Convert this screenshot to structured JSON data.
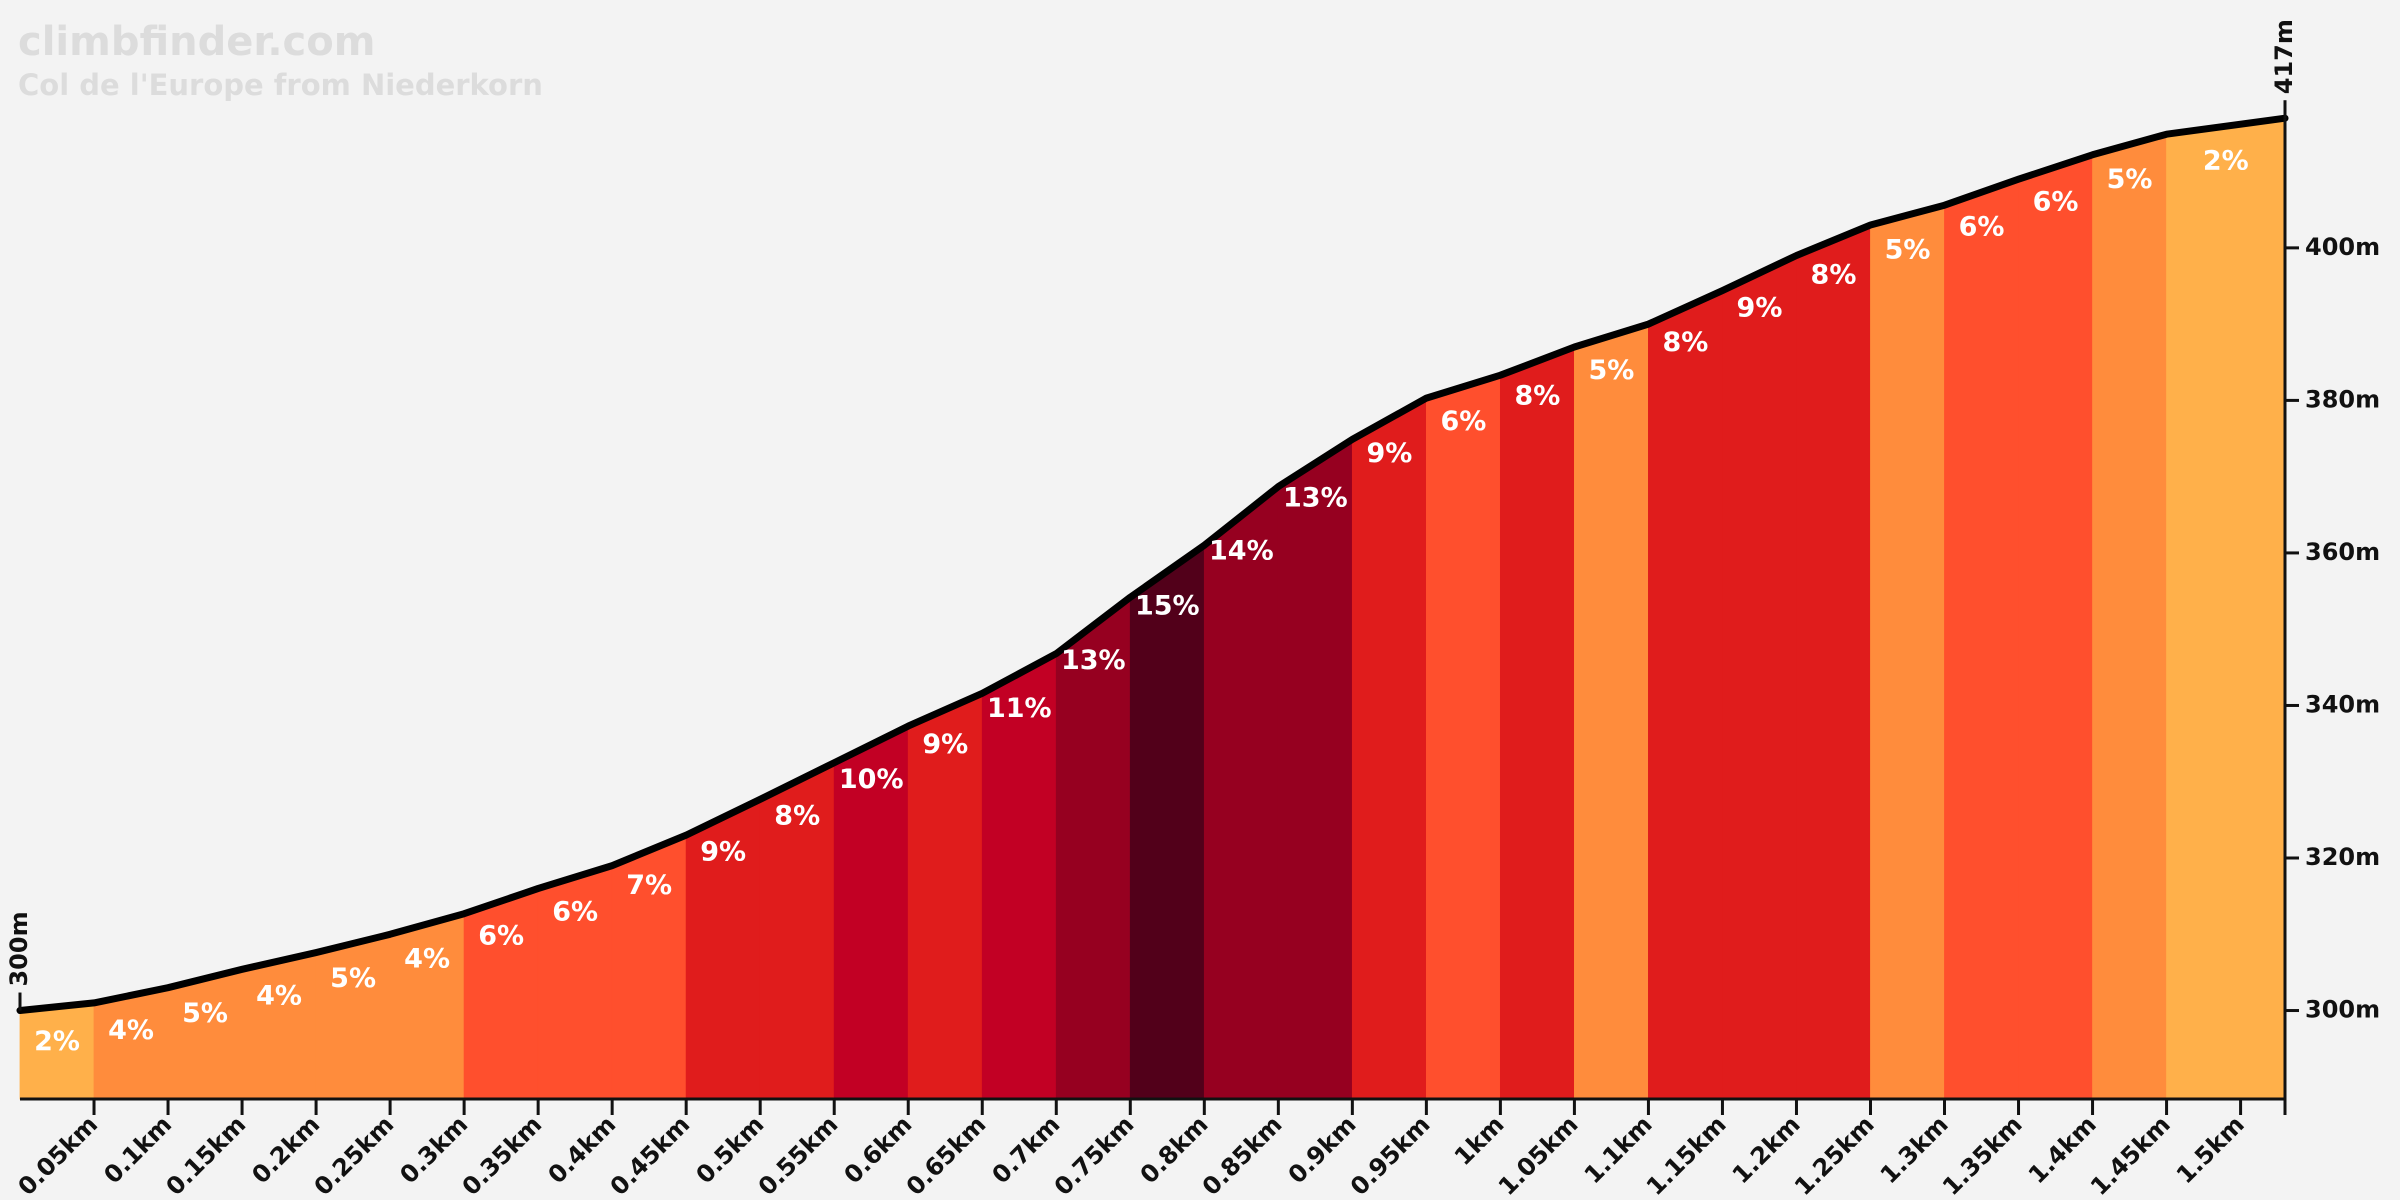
{
  "chart_data": {
    "type": "area",
    "title": "climbfinder.com",
    "subtitle": "Col de l'Europe from Niederkorn",
    "x": [
      0,
      0.05,
      0.1,
      0.15,
      0.2,
      0.25,
      0.3,
      0.35,
      0.4,
      0.45,
      0.5,
      0.55,
      0.6,
      0.65,
      0.7,
      0.75,
      0.8,
      0.85,
      0.9,
      0.95,
      1.0,
      1.05,
      1.1,
      1.15,
      1.2,
      1.25,
      1.3,
      1.35,
      1.4,
      1.45,
      1.53
    ],
    "values": [
      300,
      301,
      303,
      305.4,
      307.6,
      310,
      312.7,
      316,
      319,
      323,
      327.7,
      332.5,
      337.3,
      341.6,
      346.8,
      354.2,
      361,
      368.7,
      374.9,
      380.3,
      383.3,
      387,
      390,
      394.4,
      399,
      403,
      405.6,
      409,
      412.2,
      414.9,
      417
    ],
    "color": "#000000",
    "segments": {
      "gradients": [
        2,
        4,
        5,
        4,
        5,
        4,
        6,
        6,
        7,
        9,
        8,
        10,
        9,
        11,
        13,
        15,
        14,
        13,
        9,
        6,
        8,
        5,
        8,
        9,
        8,
        5,
        6,
        6,
        5,
        2
      ],
      "gradient_labels": [
        "2%",
        "4%",
        "5%",
        "4%",
        "5%",
        "4%",
        "6%",
        "6%",
        "7%",
        "9%",
        "8%",
        "10%",
        "9%",
        "11%",
        "13%",
        "15%",
        "14%",
        "13%",
        "9%",
        "6%",
        "8%",
        "5%",
        "8%",
        "9%",
        "8%",
        "5%",
        "6%",
        "6%",
        "5%",
        "2%"
      ],
      "colors": [
        "#ffb04a",
        "#ff8c3c",
        "#ff8c3c",
        "#ff8c3c",
        "#ff8c3c",
        "#ff8c3c",
        "#ff4f2d",
        "#ff4f2d",
        "#ff4f2d",
        "#e01c1c",
        "#e01c1c",
        "#c20024",
        "#e01c1c",
        "#c20024",
        "#960020",
        "#52001a",
        "#960020",
        "#960020",
        "#e01c1c",
        "#ff4f2d",
        "#e01c1c",
        "#ff8c3c",
        "#e01c1c",
        "#e01c1c",
        "#e01c1c",
        "#ff8c3c",
        "#ff4f2d",
        "#ff4f2d",
        "#ff8c3c",
        "#ffb04a"
      ]
    },
    "annotations": [
      {
        "value": 300,
        "label": "300m"
      },
      {
        "value": 417,
        "label": "417m"
      }
    ],
    "xlim": [
      0,
      1.53
    ],
    "ylim": [
      288.4,
      432.5
    ],
    "xticks": [
      {
        "value": 0.05,
        "label": "0.05km"
      },
      {
        "value": 0.1,
        "label": "0.1km"
      },
      {
        "value": 0.15,
        "label": "0.15km"
      },
      {
        "value": 0.2,
        "label": "0.2km"
      },
      {
        "value": 0.25,
        "label": "0.25km"
      },
      {
        "value": 0.3,
        "label": "0.3km"
      },
      {
        "value": 0.35,
        "label": "0.35km"
      },
      {
        "value": 0.4,
        "label": "0.4km"
      },
      {
        "value": 0.45,
        "label": "0.45km"
      },
      {
        "value": 0.5,
        "label": "0.5km"
      },
      {
        "value": 0.55,
        "label": "0.55km"
      },
      {
        "value": 0.6,
        "label": "0.6km"
      },
      {
        "value": 0.65,
        "label": "0.65km"
      },
      {
        "value": 0.7,
        "label": "0.7km"
      },
      {
        "value": 0.75,
        "label": "0.75km"
      },
      {
        "value": 0.8,
        "label": "0.8km"
      },
      {
        "value": 0.85,
        "label": "0.85km"
      },
      {
        "value": 0.9,
        "label": "0.9km"
      },
      {
        "value": 0.95,
        "label": "0.95km"
      },
      {
        "value": 1,
        "label": "1km"
      },
      {
        "value": 1.05,
        "label": "1.05km"
      },
      {
        "value": 1.1,
        "label": "1.1km"
      },
      {
        "value": 1.15,
        "label": "1.15km"
      },
      {
        "value": 1.2,
        "label": "1.2km"
      },
      {
        "value": 1.25,
        "label": "1.25km"
      },
      {
        "value": 1.3,
        "label": "1.3km"
      },
      {
        "value": 1.35,
        "label": "1.35km"
      },
      {
        "value": 1.4,
        "label": "1.4km"
      },
      {
        "value": 1.45,
        "label": "1.45km"
      },
      {
        "value": 1.5,
        "label": "1.5km"
      }
    ],
    "yticks": [
      {
        "value": 300,
        "label": "300m"
      },
      {
        "value": 320,
        "label": "320m"
      },
      {
        "value": 340,
        "label": "340m"
      },
      {
        "value": 360,
        "label": "360m"
      },
      {
        "value": 380,
        "label": "380m"
      },
      {
        "value": 400,
        "label": "400m"
      }
    ]
  }
}
